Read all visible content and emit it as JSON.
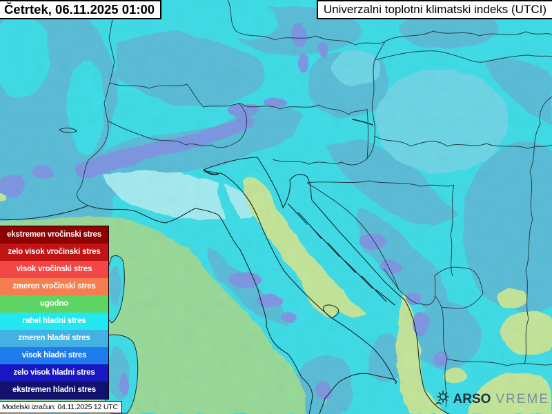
{
  "header": {
    "datetime": "Četrtek, 06.11.2025 01:00",
    "title": "Univerzalni toplotni klimatski indeks (UTCI)"
  },
  "legend": {
    "items": [
      {
        "label": "ekstremen vročinski stres",
        "color": "#8f0000"
      },
      {
        "label": "zelo visok vročinski stres",
        "color": "#c11414"
      },
      {
        "label": "visok vročinski stres",
        "color": "#f34646"
      },
      {
        "label": "zmeren vročinski stres",
        "color": "#f57d4f"
      },
      {
        "label": "ugodno",
        "color": "#5ed465"
      },
      {
        "label": "rahel hladni stres",
        "color": "#22e7ef"
      },
      {
        "label": "zmeren hladni stres",
        "color": "#43b2e2"
      },
      {
        "label": "visok hladni stres",
        "color": "#1f7ced"
      },
      {
        "label": "zelo visok hladni stres",
        "color": "#1717c3"
      },
      {
        "label": "ekstremen hladni stres",
        "color": "#12126e"
      }
    ]
  },
  "footer": {
    "model_run": "Modelski izračun: 04.11.2025 12 UTC"
  },
  "branding": {
    "name_bold": "ARSO",
    "name_light": "VREME"
  },
  "map": {
    "colors": {
      "base": "#41dfe9",
      "textured": "#5dbfda",
      "pale": "#a6edf2",
      "smooth": "#6fd8e8",
      "mountain": "#7f99e4",
      "sea_mild": "#9bdc9b",
      "sea_warm": "#c6e79c",
      "border": "#23424b",
      "coast": "#132930"
    }
  }
}
